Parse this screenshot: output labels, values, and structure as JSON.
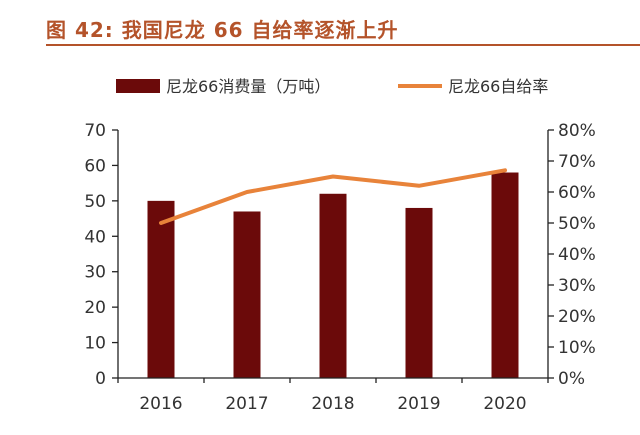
{
  "figure": {
    "title": "图 42:  我国尼龙 66 自给率逐渐上升"
  },
  "colors": {
    "title": "#b4532a",
    "bar": "#6b0a0a",
    "line": "#e8833a",
    "axis": "#222222"
  },
  "chart_data": {
    "type": "bar+line",
    "categories": [
      "2016",
      "2017",
      "2018",
      "2019",
      "2020"
    ],
    "series": [
      {
        "name": "尼龙66消费量（万吨）",
        "type": "bar",
        "axis": "left",
        "values": [
          50,
          47,
          52,
          48,
          58
        ]
      },
      {
        "name": "尼龙66自给率",
        "type": "line",
        "axis": "right",
        "values": [
          0.5,
          0.6,
          0.65,
          0.62,
          0.67
        ]
      }
    ],
    "y_left": {
      "range": [
        0,
        70
      ],
      "ticks": [
        "0",
        "10",
        "20",
        "30",
        "40",
        "50",
        "60",
        "70"
      ]
    },
    "y_right": {
      "range": [
        0,
        0.8
      ],
      "ticks": [
        "0%",
        "10%",
        "20%",
        "30%",
        "40%",
        "50%",
        "60%",
        "70%",
        "80%"
      ]
    },
    "grid": false,
    "legend_position": "top"
  }
}
